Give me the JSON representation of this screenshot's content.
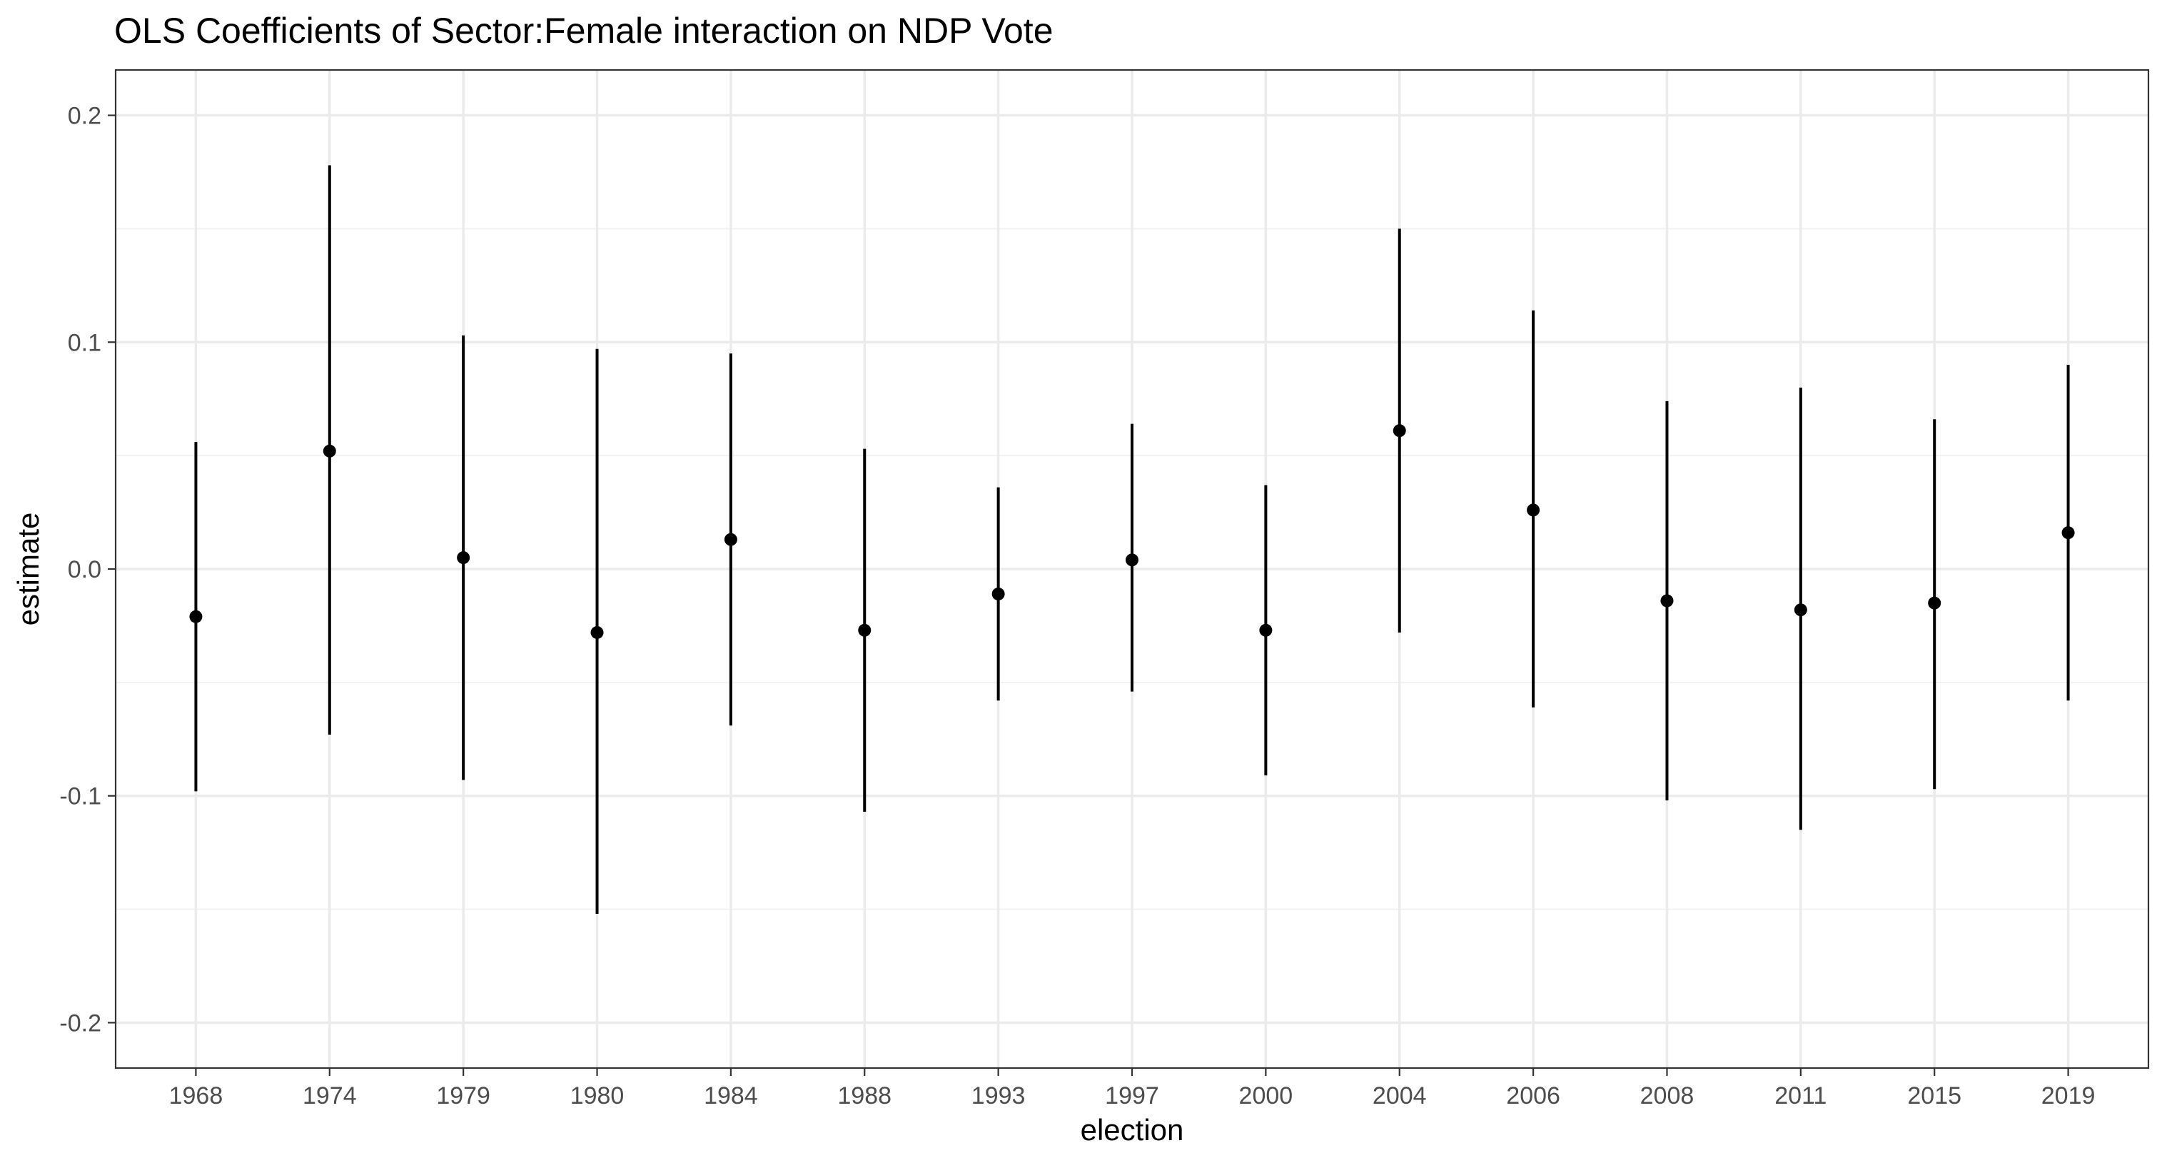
{
  "chart_data": {
    "type": "scatter",
    "title": "OLS Coefficients of Sector:Female interaction on NDP Vote",
    "xlabel": "election",
    "ylabel": "estimate",
    "ylim": [
      -0.22,
      0.22
    ],
    "y_ticks": [
      -0.2,
      -0.1,
      0.0,
      0.1,
      0.2
    ],
    "y_tick_labels": [
      "-0.2",
      "-0.1",
      "0.0",
      "0.1",
      "0.2"
    ],
    "grid": true,
    "legend": "none",
    "categories": [
      "1968",
      "1974",
      "1979",
      "1980",
      "1984",
      "1988",
      "1993",
      "1997",
      "2000",
      "2004",
      "2006",
      "2008",
      "2011",
      "2015",
      "2019"
    ],
    "estimate": [
      -0.021,
      0.052,
      0.005,
      -0.028,
      0.013,
      -0.027,
      -0.011,
      0.004,
      -0.027,
      0.061,
      0.026,
      -0.014,
      -0.018,
      -0.015,
      0.016
    ],
    "lower": [
      -0.098,
      -0.073,
      -0.093,
      -0.152,
      -0.069,
      -0.107,
      -0.058,
      -0.054,
      -0.091,
      -0.028,
      -0.061,
      -0.102,
      -0.115,
      -0.097,
      -0.058
    ],
    "upper": [
      0.056,
      0.178,
      0.103,
      0.097,
      0.095,
      0.053,
      0.036,
      0.064,
      0.037,
      0.15,
      0.114,
      0.074,
      0.08,
      0.066,
      0.09
    ],
    "colors": {
      "point": "#000000",
      "grid": "#ebebeb",
      "panel_border": "#333333",
      "tick_text": "#4d4d4d"
    }
  }
}
